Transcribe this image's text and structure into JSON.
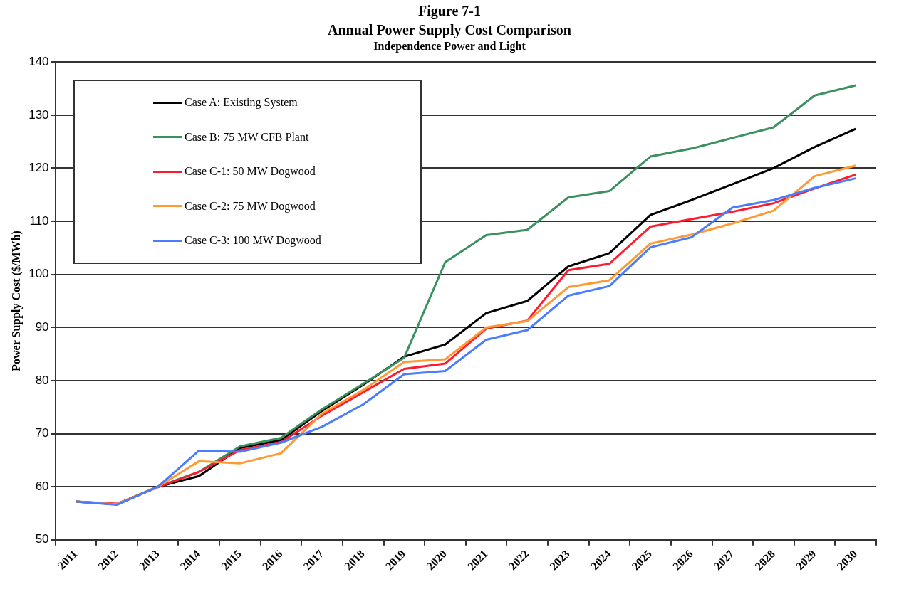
{
  "chart_data": {
    "type": "line",
    "annotations": [
      "Figure 7-1"
    ],
    "title": "Annual Power Supply Cost Comparison",
    "subtitle": "Independence Power and Light",
    "ylabel": "Power Supply Cost ($/MWh)",
    "categories": [
      "2011",
      "2012",
      "2013",
      "2014",
      "2015",
      "2016",
      "2017",
      "2018",
      "2019",
      "2020",
      "2021",
      "2022",
      "2023",
      "2024",
      "2025",
      "2026",
      "2027",
      "2028",
      "2029",
      "2030"
    ],
    "series": [
      {
        "name": "Case A: Existing System",
        "color": "#000000",
        "values": [
          57.2,
          56.7,
          60.0,
          62.0,
          67.3,
          68.8,
          74.3,
          79.2,
          84.5,
          86.8,
          92.7,
          95.0,
          101.5,
          104.0,
          111.2,
          114.0,
          117.0,
          120.0,
          124.0,
          127.4
        ]
      },
      {
        "name": "Case B: 75 MW CFB Plant",
        "color": "#3a9160",
        "values": [
          57.2,
          56.7,
          60.0,
          62.8,
          67.6,
          69.2,
          74.6,
          79.4,
          84.3,
          102.3,
          107.4,
          108.4,
          114.5,
          115.7,
          122.2,
          123.7,
          125.7,
          127.7,
          133.7,
          135.6
        ]
      },
      {
        "name": "Case C-1: 50 MW Dogwood",
        "color": "#ff1a2e",
        "values": [
          57.2,
          56.8,
          59.9,
          62.8,
          66.9,
          68.4,
          73.4,
          77.8,
          82.2,
          83.2,
          89.8,
          91.3,
          100.8,
          102.0,
          109.0,
          110.4,
          111.8,
          113.4,
          116.2,
          118.8
        ]
      },
      {
        "name": "Case C-2: 75 MW Dogwood",
        "color": "#ff9933",
        "values": [
          57.2,
          56.7,
          60.0,
          64.8,
          64.4,
          66.3,
          73.8,
          78.2,
          83.5,
          84.0,
          90.0,
          91.2,
          97.6,
          98.9,
          105.8,
          107.5,
          109.6,
          112.0,
          118.5,
          120.5
        ]
      },
      {
        "name": "Case C-3: 100 MW Dogwood",
        "color": "#4a7cff",
        "values": [
          57.2,
          56.6,
          60.0,
          66.8,
          66.6,
          68.3,
          71.3,
          75.5,
          81.2,
          81.8,
          87.7,
          89.5,
          96.0,
          97.8,
          105.1,
          107.0,
          112.6,
          114.0,
          116.3,
          118.1
        ]
      }
    ],
    "ylim": [
      50,
      140
    ],
    "yticks": [
      50,
      60,
      70,
      80,
      90,
      100,
      110,
      120,
      130,
      140
    ],
    "grid": "y",
    "legend": "top left",
    "marker": "none",
    "line_style": "solid"
  }
}
